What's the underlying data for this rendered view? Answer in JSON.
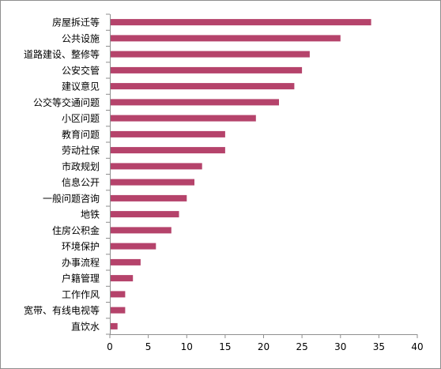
{
  "chart_data": {
    "type": "bar",
    "orientation": "horizontal",
    "categories": [
      "房屋拆迁等",
      "公共设施",
      "道路建设、整修等",
      "公安交管",
      "建议意见",
      "公交等交通问题",
      "小区问题",
      "教育问题",
      "劳动社保",
      "市政规划",
      "信息公开",
      "一般问题咨询",
      "地铁",
      "住房公积金",
      "环境保护",
      "办事流程",
      "户籍管理",
      "工作作风",
      "宽带、有线电视等",
      "直饮水"
    ],
    "values": [
      34,
      30,
      26,
      25,
      24,
      22,
      19,
      15,
      15,
      12,
      11,
      10,
      9,
      8,
      6,
      4,
      3,
      2,
      2,
      1
    ],
    "xlim": [
      0,
      40
    ],
    "xticks": [
      "0",
      "5",
      "10",
      "15",
      "20",
      "25",
      "30",
      "35",
      "40"
    ],
    "title": "",
    "xlabel": "",
    "ylabel": "",
    "grid": false,
    "legend": "none",
    "bar_color": "#b5436b",
    "axis_color": "#8e8e8e"
  }
}
